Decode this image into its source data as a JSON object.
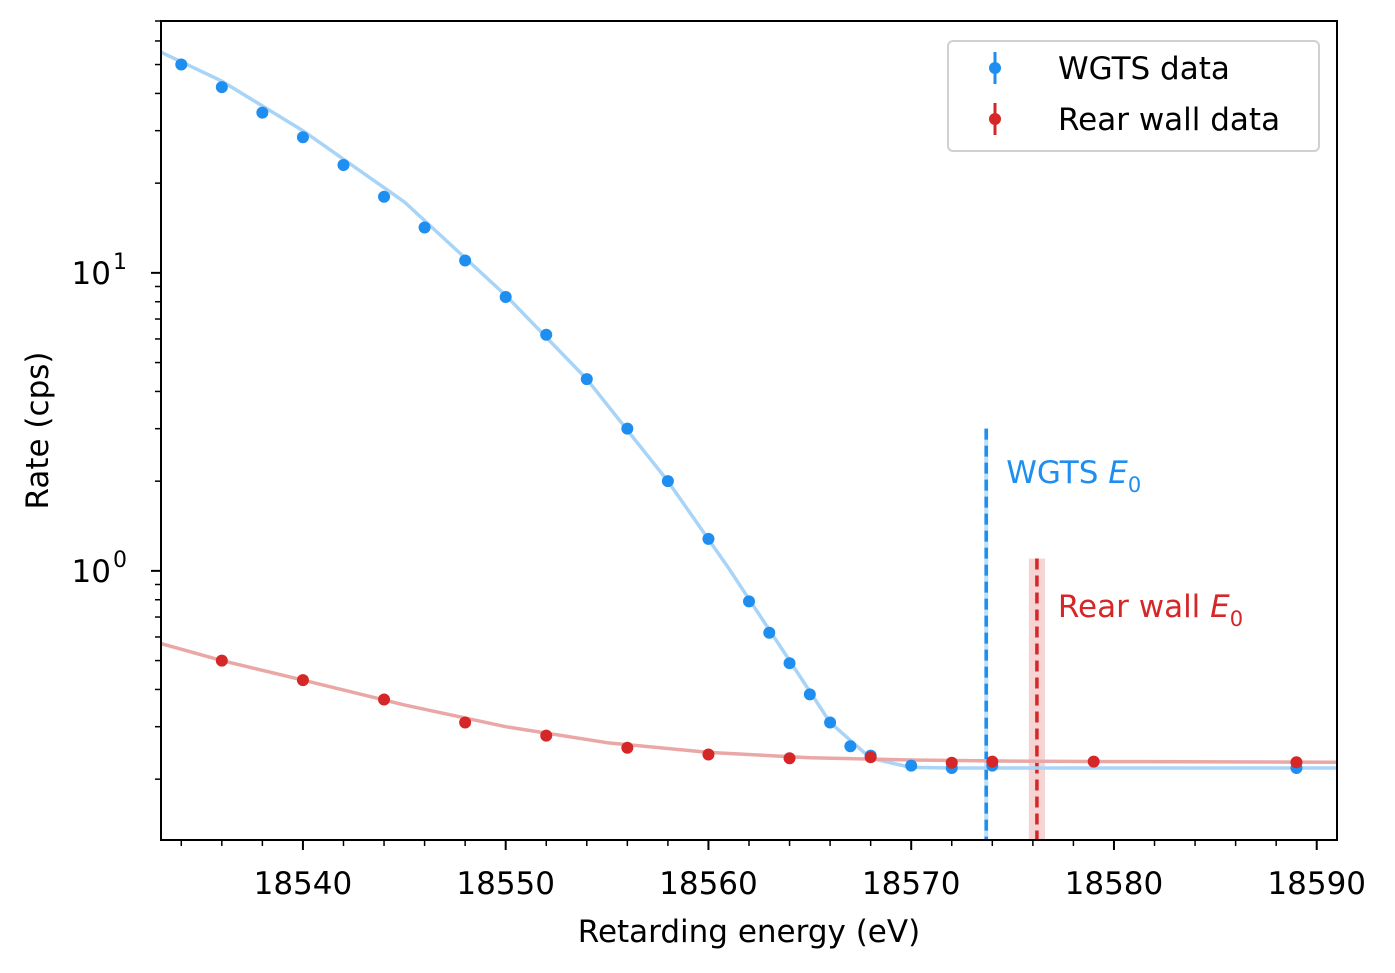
{
  "chart_data": {
    "type": "scatter",
    "title": "",
    "xlabel": "Retarding energy (eV)",
    "ylabel": "Rate (cps)",
    "xlim": [
      18533,
      18591
    ],
    "ylim": [
      0.125,
      70
    ],
    "yscale": "log",
    "x_ticks": [
      18540,
      18550,
      18560,
      18570,
      18580,
      18590
    ],
    "y_ticks": [
      {
        "value": 1,
        "base": "10",
        "exp": "0"
      },
      {
        "value": 10,
        "base": "10",
        "exp": "1"
      }
    ],
    "legend": {
      "placement": "top-right"
    },
    "series": [
      {
        "name": "WGTS data",
        "color": "#1e8ef0",
        "fit_color": "#a8d4f7",
        "x": [
          18534,
          18536,
          18538,
          18540,
          18542,
          18544,
          18546,
          18548,
          18550,
          18552,
          18554,
          18556,
          18558,
          18560,
          18562,
          18563,
          18564,
          18565,
          18566,
          18567,
          18568,
          18570,
          18572,
          18574,
          18589
        ],
        "y": [
          50,
          42,
          34.5,
          28.5,
          23,
          18,
          14.2,
          11,
          8.3,
          6.2,
          4.4,
          3.0,
          2.0,
          1.28,
          0.79,
          0.62,
          0.49,
          0.385,
          0.31,
          0.258,
          0.24,
          0.222,
          0.218,
          0.222,
          0.218
        ],
        "fit_x": [
          18533,
          18536,
          18540,
          18545,
          18550,
          18554,
          18558,
          18561,
          18564,
          18566,
          18568,
          18570,
          18572,
          18575,
          18580,
          18585,
          18591
        ],
        "fit_y": [
          55,
          44,
          30,
          17.3,
          8.4,
          4.4,
          2.0,
          1.02,
          0.5,
          0.31,
          0.235,
          0.219,
          0.218,
          0.218,
          0.218,
          0.218,
          0.218
        ]
      },
      {
        "name": "Rear wall data",
        "color": "#d62728",
        "fit_color": "#e9a8a6",
        "x": [
          18536,
          18540,
          18544,
          18548,
          18552,
          18556,
          18560,
          18564,
          18568,
          18572,
          18574,
          18579,
          18589
        ],
        "y": [
          0.5,
          0.43,
          0.37,
          0.31,
          0.28,
          0.255,
          0.242,
          0.235,
          0.237,
          0.227,
          0.229,
          0.229,
          0.228
        ],
        "fit_x": [
          18533,
          18536,
          18540,
          18545,
          18550,
          18555,
          18560,
          18565,
          18570,
          18575,
          18580,
          18591
        ],
        "fit_y": [
          0.57,
          0.5,
          0.43,
          0.355,
          0.3,
          0.265,
          0.246,
          0.236,
          0.232,
          0.23,
          0.229,
          0.228
        ]
      }
    ],
    "annotations": [
      {
        "label_prefix": "WGTS ",
        "label_symbol": "E",
        "label_sub": "0",
        "x": 18573.7,
        "y_top": 3.0,
        "color": "#1e8ef0",
        "band": [
          18573.6,
          18573.8
        ],
        "band_color": "#a8d4f7"
      },
      {
        "label_prefix": "Rear wall ",
        "label_symbol": "E",
        "label_sub": "0",
        "x": 18576.2,
        "y_top": 1.1,
        "color": "#d62728",
        "band": [
          18575.8,
          18576.6
        ],
        "band_color": "#f4c6c6"
      }
    ]
  }
}
